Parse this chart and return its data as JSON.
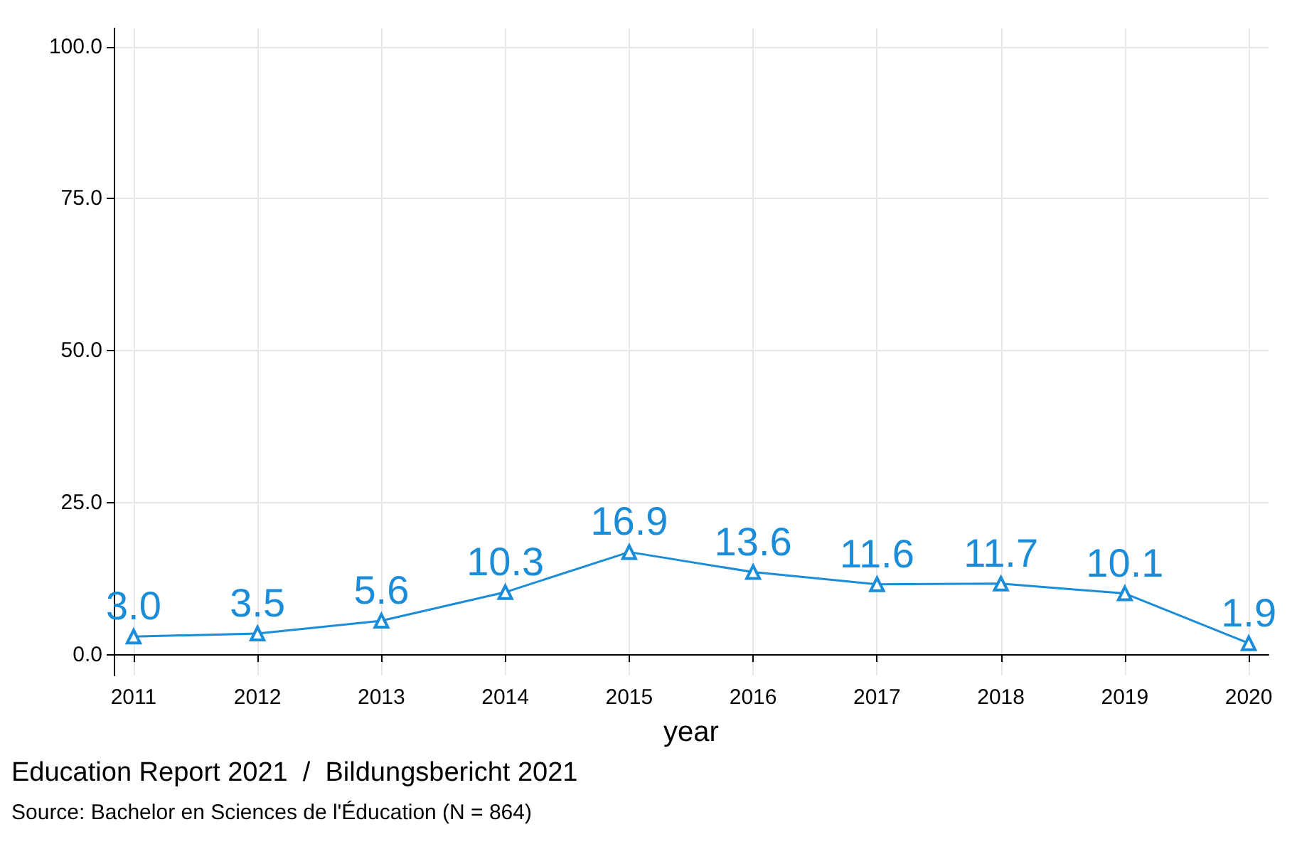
{
  "chart_data": {
    "type": "line",
    "xlabel": "year",
    "x": [
      2011,
      2012,
      2013,
      2014,
      2015,
      2016,
      2017,
      2018,
      2019,
      2020
    ],
    "series": [
      {
        "color": "#1a8cd8",
        "values": [
          3.0,
          3.5,
          5.6,
          10.3,
          16.9,
          13.6,
          11.6,
          11.7,
          10.1,
          1.9
        ],
        "value_labels": [
          "3.0",
          "3.5",
          "5.6",
          "10.3",
          "16.9",
          "13.6",
          "11.6",
          "11.7",
          "10.1",
          "1.9"
        ]
      }
    ],
    "xlim": [
      2010.84,
      2020.16
    ],
    "xticks": [
      2011,
      2012,
      2013,
      2014,
      2015,
      2016,
      2017,
      2018,
      2019,
      2020
    ],
    "ylim": [
      -3.4,
      103
    ],
    "yticks": [
      {
        "value": 0,
        "label": "0.0"
      },
      {
        "value": 25,
        "label": "25.0"
      },
      {
        "value": 50,
        "label": "50.0"
      },
      {
        "value": 75,
        "label": "75.0"
      },
      {
        "value": 100,
        "label": "100.0"
      }
    ],
    "grid": true,
    "marker": "triangle",
    "line_style": "solid",
    "annotations": [
      "Education Report 2021  /  Bildungsbericht 2021",
      "Source: Bachelor en Sciences de l'Éducation (N = 864)"
    ]
  }
}
